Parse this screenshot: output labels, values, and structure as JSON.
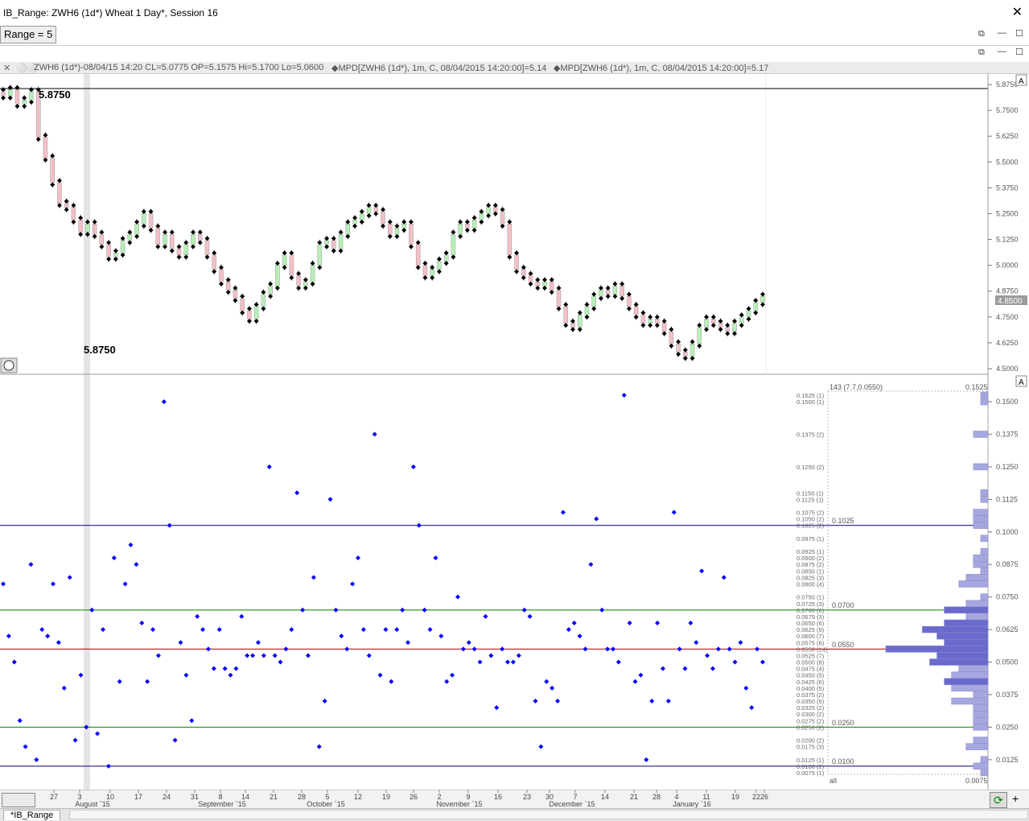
{
  "window": {
    "title": "IB_Range: ZWH6 (1d*) Wheat 1 Day*, Session 16",
    "close_glyph": "✕",
    "restore_glyph": "⧉",
    "minimize_glyph": "—",
    "maximize_glyph": "☐"
  },
  "toolbar": {
    "range_label": "Range = 5"
  },
  "chart_header": {
    "symbol_text": "ZWH6 (1d*)-08/04/15 14:20 CL=5.0775 OP=5.1575 Hi=5.1700 Lo=5.0600",
    "mpd1_text": "MPD[ZWH6 (1d*), 1m, C, 08/04/2015 14:20:00]=5.14",
    "mpd2_text": "MPD[ZWH6 (1d*), 1m, C, 08/04/2015 14:20:00]=5.17"
  },
  "price_panel": {
    "label_top": "5.8750",
    "label_bottom": "5.8750",
    "last_price": "4.8500",
    "axis_labels": [
      "5.8750",
      "5.7500",
      "5.6250",
      "5.5000",
      "5.3750",
      "5.2500",
      "5.1250",
      "5.0000",
      "4.8750",
      "4.7500",
      "4.6250",
      "4.5000"
    ],
    "panel_button": "A"
  },
  "range_panel": {
    "stats_label": "143 (7.7,0.0550)",
    "top_value": "0.1525",
    "all_label": "all",
    "bottom_value": "0.0075",
    "axis_labels": [
      "0.1500",
      "0.1375",
      "0.1250",
      "0.1125",
      "0.1000",
      "0.0875",
      "0.0750",
      "0.0625",
      "0.0500",
      "0.0375",
      "0.0250",
      "0.0125"
    ],
    "line_labels": {
      "l1025": "0.1025",
      "l0700": "0.0700",
      "l0550": "0.0550",
      "l0250": "0.0250",
      "l0100": "0.0100"
    },
    "histogram_labels": [
      "0.1525 (1)",
      "0.1500 (1)",
      "0.1375 (2)",
      "0.1250 (2)",
      "0.1150 (1)",
      "0.1125 (1)",
      "0.1075 (2)",
      "0.1050 (2)",
      "0.1025 (2)",
      "0.0975 (1)",
      "0.0925 (1)",
      "0.0900 (2)",
      "0.0875 (2)",
      "0.0850 (1)",
      "0.0825 (3)",
      "0.0800 (4)",
      "0.0750 (1)",
      "0.0725 (3)",
      "0.0700 (6)",
      "0.0675 (3)",
      "0.0650 (6)",
      "0.0625 (9)",
      "0.0600 (7)",
      "0.0575 (6)",
      "0.0550 (14)",
      "0.0525 (7)",
      "0.0500 (8)",
      "0.0475 (4)",
      "0.0450 (5)",
      "0.0425 (6)",
      "0.0400 (5)",
      "0.0375 (2)",
      "0.0350 (5)",
      "0.0325 (2)",
      "0.0300 (2)",
      "0.0275 (2)",
      "0.0250 (2)",
      "0.0200 (2)",
      "0.0175 (3)",
      "0.0125 (1)",
      "0.0100 (2)",
      "0.0075 (1)"
    ],
    "panel_button": "A"
  },
  "date_axis": {
    "ticks": [
      {
        "d": "27"
      },
      {
        "d": "3"
      },
      {
        "d": "10"
      },
      {
        "d": "17"
      },
      {
        "d": "24"
      },
      {
        "d": "31"
      },
      {
        "d": "8"
      },
      {
        "d": "14"
      },
      {
        "d": "21"
      },
      {
        "d": "28"
      },
      {
        "d": "5"
      },
      {
        "d": "12"
      },
      {
        "d": "19"
      },
      {
        "d": "26"
      },
      {
        "d": "2"
      },
      {
        "d": "9"
      },
      {
        "d": "16"
      },
      {
        "d": "23"
      },
      {
        "d": "30"
      },
      {
        "d": "7"
      },
      {
        "d": "14"
      },
      {
        "d": "21"
      },
      {
        "d": "28"
      },
      {
        "d": "4"
      },
      {
        "d": "11"
      },
      {
        "d": "19"
      },
      {
        "d": "22"
      },
      {
        "d": "26"
      }
    ],
    "months": [
      "August `15",
      "September `15",
      "October `15",
      "November `15",
      "December `15",
      "January `16"
    ]
  },
  "tabs": {
    "active": "*IB_Range"
  },
  "chart_data": [
    {
      "type": "candlestick",
      "title": "ZWH6 (1d*) Wheat 1 Day*",
      "ylim": [
        4.5,
        5.875
      ],
      "close": [
        5.82,
        5.85,
        5.78,
        5.8,
        5.84,
        5.62,
        5.52,
        5.4,
        5.3,
        5.28,
        5.22,
        5.16,
        5.2,
        5.15,
        5.1,
        5.04,
        5.06,
        5.12,
        5.15,
        5.2,
        5.25,
        5.18,
        5.1,
        5.15,
        5.08,
        5.05,
        5.1,
        5.15,
        5.12,
        5.05,
        4.98,
        4.92,
        4.88,
        4.84,
        4.78,
        4.74,
        4.8,
        4.86,
        4.9,
        5.0,
        5.05,
        4.95,
        4.9,
        4.92,
        5.0,
        5.1,
        5.12,
        5.08,
        5.15,
        5.2,
        5.22,
        5.25,
        5.28,
        5.26,
        5.2,
        5.15,
        5.18,
        5.2,
        5.1,
        5.0,
        4.95,
        4.98,
        5.02,
        5.05,
        5.15,
        5.2,
        5.18,
        5.22,
        5.25,
        5.28,
        5.26,
        5.2,
        5.05,
        4.98,
        4.95,
        4.92,
        4.9,
        4.92,
        4.88,
        4.8,
        4.72,
        4.7,
        4.76,
        4.8,
        4.85,
        4.88,
        4.86,
        4.9,
        4.85,
        4.8,
        4.76,
        4.72,
        4.74,
        4.72,
        4.68,
        4.62,
        4.58,
        4.56,
        4.62,
        4.7,
        4.74,
        4.72,
        4.7,
        4.68,
        4.72,
        4.75,
        4.78,
        4.82,
        4.85
      ],
      "series_markers": "MPD"
    },
    {
      "type": "scatter",
      "title": "IB_Range",
      "ylim": [
        0.0075,
        0.1525
      ],
      "values": [
        0.08,
        0.06,
        0.05,
        0.0275,
        0.0175,
        0.0875,
        0.0125,
        0.0625,
        0.06,
        0.08,
        0.0575,
        0.04,
        0.0825,
        0.02,
        0.045,
        0.025,
        0.07,
        0.0225,
        0.0625,
        0.01,
        0.09,
        0.0425,
        0.08,
        0.095,
        0.0875,
        0.065,
        0.0425,
        0.0625,
        0.0525,
        0.15,
        0.1025,
        0.02,
        0.0575,
        0.045,
        0.0275,
        0.0675,
        0.0625,
        0.055,
        0.0475,
        0.0625,
        0.0475,
        0.045,
        0.0475,
        0.0675,
        0.0525,
        0.0525,
        0.0575,
        0.0525,
        0.125,
        0.0525,
        0.05,
        0.055,
        0.0625,
        0.115,
        0.07,
        0.0525,
        0.0825,
        0.0175,
        0.035,
        0.1125,
        0.07,
        0.06,
        0.055,
        0.08,
        0.09,
        0.0625,
        0.0525,
        0.1375,
        0.045,
        0.0625,
        0.0425,
        0.0625,
        0.07,
        0.0575,
        0.125,
        0.1025,
        0.07,
        0.0625,
        0.09,
        0.06,
        0.0425,
        0.045,
        0.075,
        0.055,
        0.0575,
        0.055,
        0.05,
        0.0675,
        0.0525,
        0.0325,
        0.055,
        0.05,
        0.05,
        0.0525,
        0.07,
        0.0675,
        0.035,
        0.0175,
        0.0425,
        0.04,
        0.035,
        0.1075,
        0.0625,
        0.065,
        0.06,
        0.055,
        0.0875,
        0.105,
        0.07,
        0.055,
        0.055,
        0.05,
        0.1525,
        0.065,
        0.0425,
        0.045,
        0.0125,
        0.035,
        0.065,
        0.0475,
        0.035,
        0.1075,
        0.055,
        0.0475,
        0.065,
        0.0575,
        0.085,
        0.0525,
        0.0475,
        0.055,
        0.0825,
        0.055,
        0.05,
        0.0575,
        0.04,
        0.0325,
        0.055,
        0.05
      ],
      "reference_lines": [
        0.1025,
        0.07,
        0.055,
        0.025,
        0.01
      ],
      "histogram": {
        "bins": [
          0.1525,
          0.15,
          0.1375,
          0.125,
          0.115,
          0.1125,
          0.1075,
          0.105,
          0.1025,
          0.0975,
          0.0925,
          0.09,
          0.0875,
          0.085,
          0.0825,
          0.08,
          0.075,
          0.0725,
          0.07,
          0.0675,
          0.065,
          0.0625,
          0.06,
          0.0575,
          0.055,
          0.0525,
          0.05,
          0.0475,
          0.045,
          0.0425,
          0.04,
          0.0375,
          0.035,
          0.0325,
          0.03,
          0.0275,
          0.025,
          0.02,
          0.0175,
          0.0125,
          0.01,
          0.0075
        ],
        "counts": [
          1,
          1,
          2,
          2,
          1,
          1,
          2,
          2,
          2,
          1,
          1,
          2,
          2,
          1,
          3,
          4,
          1,
          3,
          6,
          3,
          6,
          9,
          7,
          6,
          14,
          7,
          8,
          4,
          5,
          6,
          5,
          2,
          5,
          2,
          2,
          2,
          2,
          2,
          3,
          1,
          2,
          1
        ]
      }
    }
  ],
  "colors": {
    "up_candle": "#b8f0b8",
    "down_candle": "#f4c0c8",
    "marker": "#000000",
    "scatter": "#0000ff",
    "hist_fill": "#a7a7e0",
    "hist_dark": "#6a6acc",
    "line_blue": "#000080",
    "line_green": "#008000",
    "line_red": "#b00000"
  }
}
